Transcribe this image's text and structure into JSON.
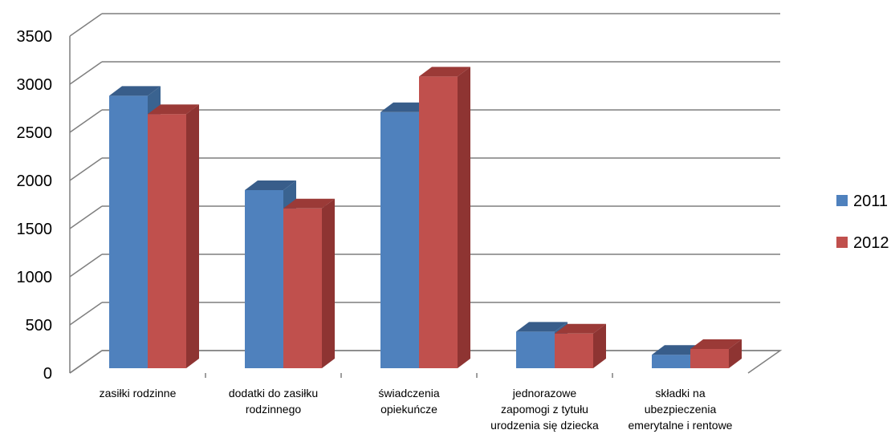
{
  "chart_data": {
    "type": "bar",
    "categories": [
      [
        "zasiłki rodzinne"
      ],
      [
        "dodatki do zasiłku",
        "rodzinnego"
      ],
      [
        "świadczenia",
        "opiekuńcze"
      ],
      [
        "jednorazowe",
        "zapomogi z tytułu",
        "urodzenia się dziecka"
      ],
      [
        "składki na",
        "ubezpieczenia",
        "emerytalne i rentowe"
      ]
    ],
    "series": [
      {
        "name": "2011",
        "values": [
          2830,
          1850,
          2660,
          380,
          140
        ],
        "color": "#4F81BD",
        "top_color": "#385D8A",
        "side_color": "#3A6390"
      },
      {
        "name": "2012",
        "values": [
          2640,
          1660,
          3030,
          360,
          200
        ],
        "color": "#C0504D",
        "top_color": "#9B3A37",
        "side_color": "#8E3432"
      }
    ],
    "y_ticks": [
      "0",
      "500",
      "1000",
      "1500",
      "2000",
      "2500",
      "3000",
      "3500"
    ],
    "ylim": [
      0,
      3500
    ],
    "grid": true,
    "legend_position": "right",
    "title": "",
    "xlabel": "",
    "ylabel": ""
  }
}
